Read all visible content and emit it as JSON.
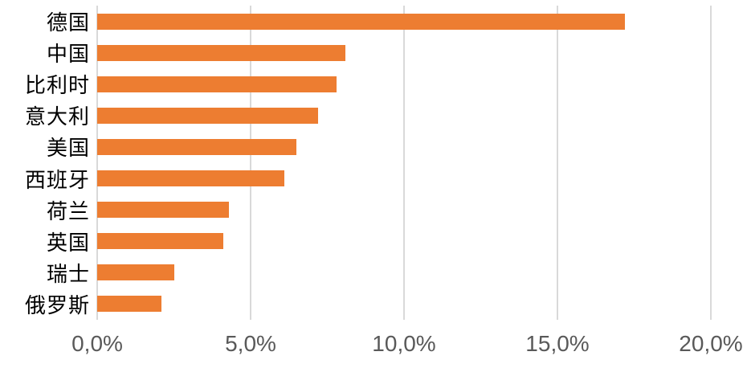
{
  "chart_data": {
    "type": "bar",
    "orientation": "horizontal",
    "title": "",
    "xlabel": "",
    "ylabel": "",
    "categories": [
      "德国",
      "中国",
      "比利时",
      "意大利",
      "美国",
      "西班牙",
      "荷兰",
      "英国",
      "瑞士",
      "俄罗斯"
    ],
    "values": [
      17.2,
      8.1,
      7.8,
      7.2,
      6.5,
      6.1,
      4.3,
      4.1,
      2.5,
      2.1
    ],
    "value_unit": "%",
    "xlim": [
      0,
      20
    ],
    "x_tick_values": [
      0,
      5,
      10,
      15,
      20
    ],
    "x_tick_labels": [
      "0,0%",
      "5,0%",
      "10,0%",
      "15,0%",
      "20,0%"
    ],
    "grid": "vertical",
    "legend_position": "none",
    "colors": {
      "bar": "#ED7D31",
      "gridline": "#D9D9D9",
      "tick_label": "#595959",
      "category_label": "#000000",
      "background": "#FFFFFF"
    }
  }
}
